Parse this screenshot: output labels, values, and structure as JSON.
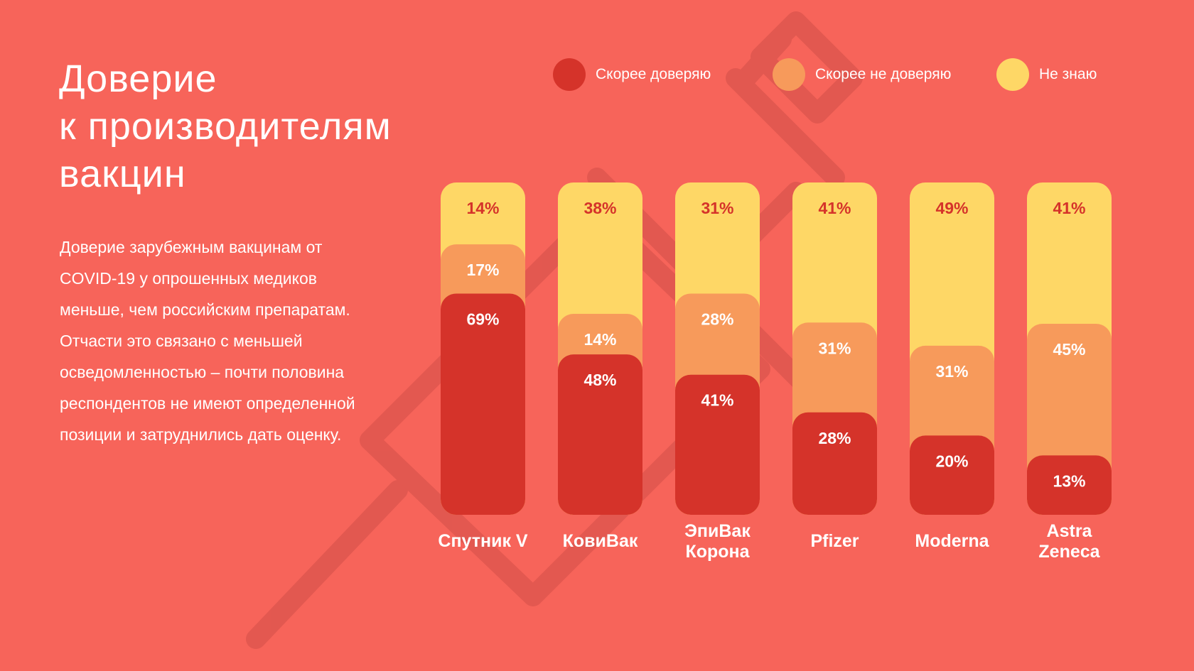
{
  "title_lines": [
    "Доверие",
    "к производителям",
    "вакцин"
  ],
  "body_text": "Доверие зарубежным вакцинам от COVID-19 у опрошенных медиков меньше, чем российским препаратам. Отчасти это связано с меньшей осведомленностью – почти половина респондентов не имеют определенной позиции и затруднились дать оценку.",
  "colors": {
    "background": "#F7645A",
    "trust": "#D5332A",
    "distrust": "#F79A5B",
    "unknown": "#FED766",
    "unknown_label": "#D5332A"
  },
  "watermark_icon": "syringe-icon",
  "chart_data": {
    "type": "bar",
    "stacked": true,
    "unit": "%",
    "legend_position": "top-right",
    "categories": [
      "Спутник V",
      "КовиВак",
      "ЭпиВак Корона",
      "Pfizer",
      "Moderna",
      "Astra Zeneca"
    ],
    "series": [
      {
        "name": "Скорее доверяю",
        "values": [
          69,
          48,
          41,
          28,
          20,
          13
        ]
      },
      {
        "name": "Скорее не доверяю",
        "values": [
          17,
          14,
          28,
          31,
          31,
          45
        ]
      },
      {
        "name": "Не знаю",
        "values": [
          14,
          38,
          31,
          41,
          49,
          41
        ]
      }
    ]
  }
}
